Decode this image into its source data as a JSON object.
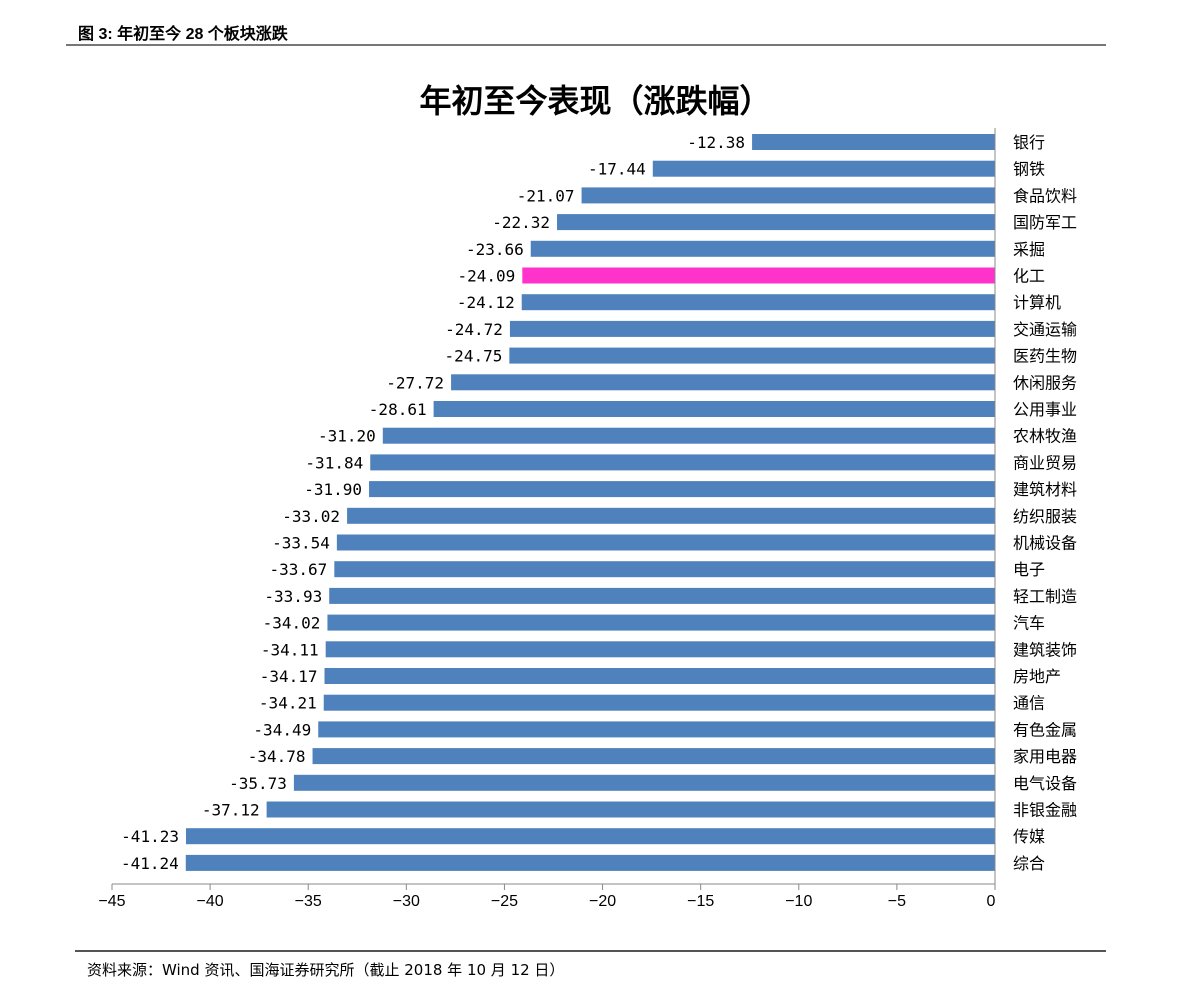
{
  "figure_caption": "图 3:  年初至今 28 个板块涨跌",
  "source_note": "资料来源：Wind 资讯、国海证券研究所（截止 2018 年 10 月 12 日）",
  "chart_data": {
    "type": "bar",
    "orientation": "horizontal",
    "title": "年初至今表现（涨跌幅）",
    "xlabel": "",
    "ylabel": "",
    "xlim": [
      -45,
      0
    ],
    "xticks": [
      -45,
      -40,
      -35,
      -30,
      -25,
      -20,
      -15,
      -10,
      -5,
      0
    ],
    "grid": false,
    "legend": "none",
    "categories": [
      "银行",
      "钢铁",
      "食品饮料",
      "国防军工",
      "采掘",
      "化工",
      "计算机",
      "交通运输",
      "医药生物",
      "休闲服务",
      "公用事业",
      "农林牧渔",
      "商业贸易",
      "建筑材料",
      "纺织服装",
      "机械设备",
      "电子",
      "轻工制造",
      "汽车",
      "建筑装饰",
      "房地产",
      "通信",
      "有色金属",
      "家用电器",
      "电气设备",
      "非银金融",
      "传媒",
      "综合"
    ],
    "values": [
      -12.38,
      -17.44,
      -21.07,
      -22.32,
      -23.66,
      -24.09,
      -24.12,
      -24.72,
      -24.75,
      -27.72,
      -28.61,
      -31.2,
      -31.84,
      -31.9,
      -33.02,
      -33.54,
      -33.67,
      -33.93,
      -34.02,
      -34.11,
      -34.17,
      -34.21,
      -34.49,
      -34.78,
      -35.73,
      -37.12,
      -41.23,
      -41.24
    ],
    "data_labels": [
      "-12.38",
      "-17.44",
      "-21.07",
      "-22.32",
      "-23.66",
      "-24.09",
      "-24.12",
      "-24.72",
      "-24.75",
      "-27.72",
      "-28.61",
      "-31.20",
      "-31.84",
      "-31.90",
      "-33.02",
      "-33.54",
      "-33.67",
      "-33.93",
      "-34.02",
      "-34.11",
      "-34.17",
      "-34.21",
      "-34.49",
      "-34.78",
      "-35.73",
      "-37.12",
      "-41.23",
      "-41.24"
    ],
    "highlight_category": "化工",
    "colors": {
      "bar": "#4f81bd",
      "highlight": "#ff33cc",
      "axis": "#888888"
    }
  }
}
